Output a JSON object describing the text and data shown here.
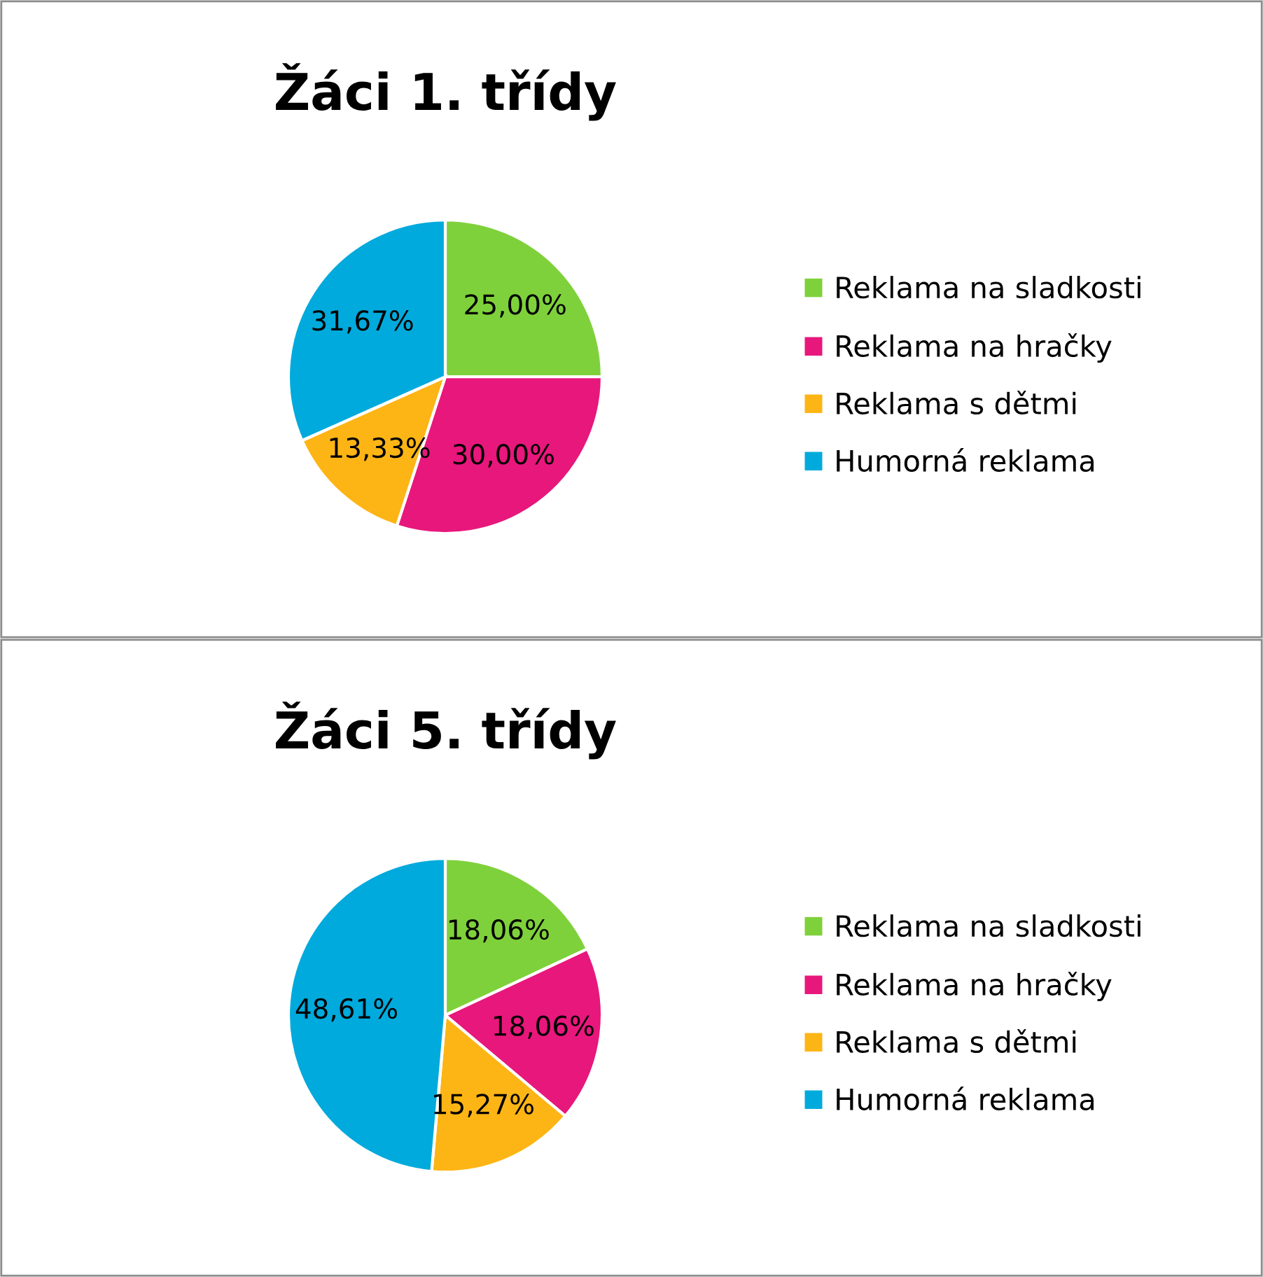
{
  "chart_data": [
    {
      "type": "pie",
      "title": "Žáci 1. třídy",
      "categories": [
        "Reklama na sladkosti",
        "Reklama na hračky",
        "Reklama s dětmi",
        "Humorná reklama"
      ],
      "values": [
        25.0,
        30.0,
        13.33,
        31.67
      ],
      "value_labels": [
        "25,00%",
        "30,00%",
        "13,33%",
        "31,67%"
      ],
      "colors": [
        "#7fd13b",
        "#e8177c",
        "#fdb515",
        "#00aadc"
      ],
      "legend": "right"
    },
    {
      "type": "pie",
      "title": "Žáci 5. třídy",
      "categories": [
        "Reklama na sladkosti",
        "Reklama na hračky",
        "Reklama s dětmi",
        "Humorná reklama"
      ],
      "values": [
        18.06,
        18.06,
        15.27,
        48.61
      ],
      "value_labels": [
        "18,06%",
        "18,06%",
        "15,27%",
        "48,61%"
      ],
      "colors": [
        "#7fd13b",
        "#e8177c",
        "#fdb515",
        "#00aadc"
      ],
      "legend": "right"
    }
  ]
}
